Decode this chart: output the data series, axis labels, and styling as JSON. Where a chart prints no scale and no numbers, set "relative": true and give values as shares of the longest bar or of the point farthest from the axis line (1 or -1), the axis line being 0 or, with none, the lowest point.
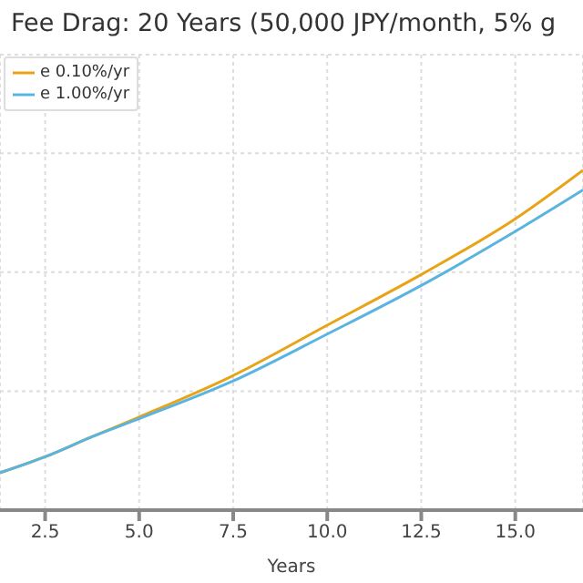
{
  "chart_data": {
    "type": "line",
    "title": "Fee Drag: 20 Years (50,000 JPY/month, 5% g",
    "xlabel": "Years",
    "relative": true,
    "x": [
      1.3,
      2.5,
      3.75,
      5,
      7.5,
      10,
      12.5,
      15,
      16.8
    ],
    "xlim": [
      1.3,
      16.8
    ],
    "xticks": [
      2.5,
      {
        "value": 5,
        "label": "5.0"
      },
      7.5,
      {
        "value": 10,
        "label": "10.0"
      },
      12.5,
      {
        "value": 15,
        "label": "15.0"
      }
    ],
    "series": [
      {
        "name": "e 0.10%/yr",
        "color": "#e8a317",
        "values": [
          0.11,
          0.157,
          0.216,
          0.274,
          0.396,
          0.544,
          0.693,
          0.857,
          1
        ]
      },
      {
        "name": "e 1.00%/yr",
        "color": "#5ab4e0",
        "values": [
          0.11,
          0.157,
          0.216,
          0.269,
          0.38,
          0.518,
          0.661,
          0.82,
          0.942
        ]
      }
    ],
    "grid": true,
    "legend": "top left",
    "marker": "none",
    "line_style": "solid"
  }
}
